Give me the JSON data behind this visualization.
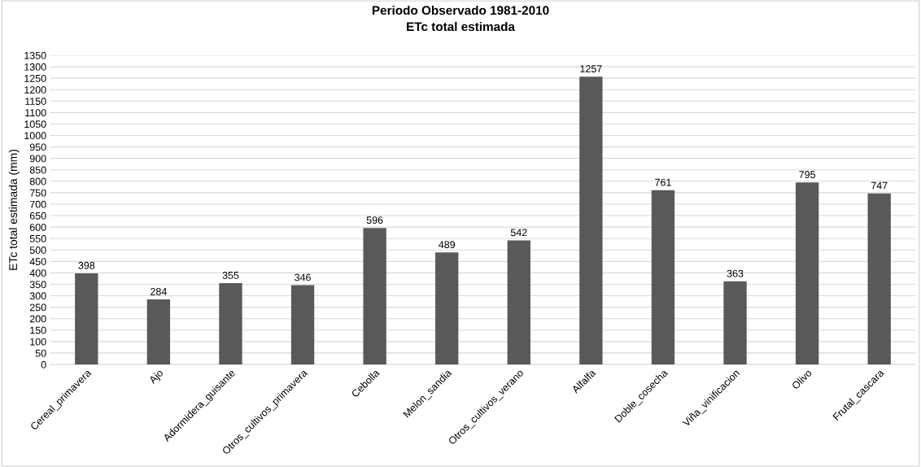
{
  "chart_data": {
    "type": "bar",
    "title": "Periodo Observado 1981-2010",
    "subtitle": "ETc total estimada",
    "ylabel": "ETc total estimada (mm)",
    "categories": [
      "Cereal_primavera",
      "Ajo",
      "Adormidera_guisante",
      "Otros_cultivos_primavera",
      "Cebolla",
      "Melon_sandia",
      "Otros_cultivos_verano",
      "Alfalfa",
      "Doble_cosecha",
      "Viña_vinificacion",
      "Olivo",
      "Frutal_cascara"
    ],
    "values": [
      398,
      284,
      355,
      346,
      596,
      489,
      542,
      1257,
      761,
      363,
      795,
      747
    ],
    "color": "#595959",
    "ylim": [
      0,
      1350
    ],
    "yticks": [
      0,
      50,
      100,
      150,
      200,
      250,
      300,
      350,
      400,
      450,
      500,
      550,
      600,
      650,
      700,
      750,
      800,
      850,
      900,
      950,
      1000,
      1050,
      1100,
      1150,
      1200,
      1250,
      1300,
      1350
    ],
    "grid": "y",
    "data_labels": true
  }
}
